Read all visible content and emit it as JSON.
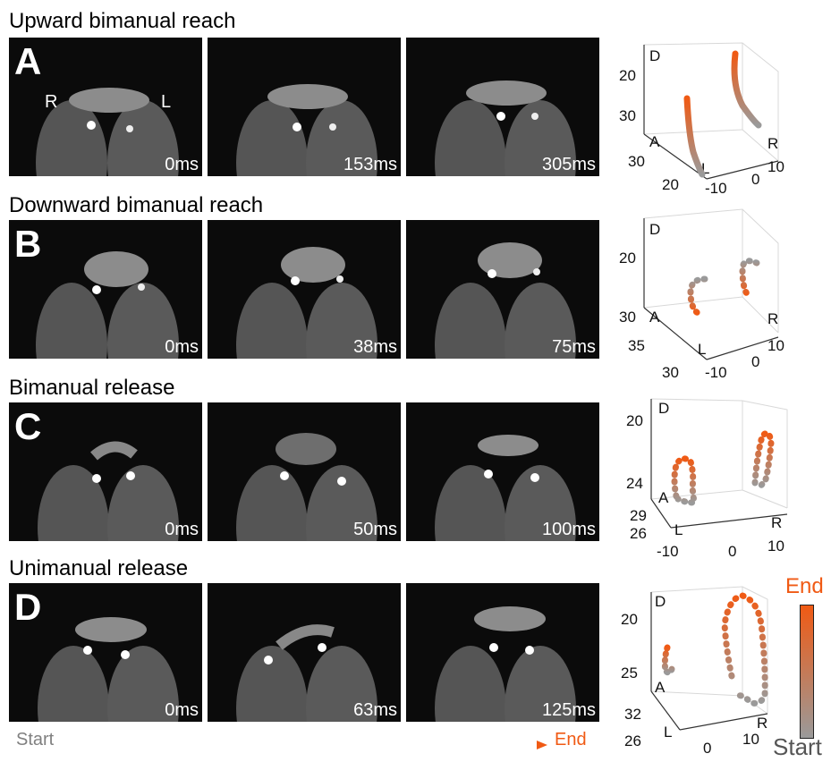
{
  "rows": [
    {
      "title": "Upward bimanual reach",
      "letter": "A",
      "times": [
        "0ms",
        "153ms",
        "305ms"
      ],
      "hands": {
        "right": "R",
        "left": "L"
      },
      "plot": {
        "d_ticks": [
          "20",
          "30"
        ],
        "a_ticks": [
          "30",
          "20"
        ],
        "x_ticks": [
          "10",
          "0",
          "-10"
        ],
        "labels": {
          "d": "D",
          "a": "A",
          "l": "L",
          "r": "R"
        }
      }
    },
    {
      "title": "Downward bimanual reach",
      "letter": "B",
      "times": [
        "0ms",
        "38ms",
        "75ms"
      ],
      "plot": {
        "d_ticks": [
          "20",
          "30"
        ],
        "a_ticks": [
          "35",
          "30"
        ],
        "x_ticks": [
          "10",
          "0",
          "-10"
        ],
        "labels": {
          "d": "D",
          "a": "A",
          "l": "L",
          "r": "R"
        }
      }
    },
    {
      "title": "Bimanual release",
      "letter": "C",
      "times": [
        "0ms",
        "50ms",
        "100ms"
      ],
      "plot": {
        "d_ticks": [
          "20",
          "24"
        ],
        "a_ticks": [
          "29",
          "26"
        ],
        "x_ticks": [
          "-10",
          "0",
          "10"
        ],
        "labels": {
          "d": "D",
          "a": "A",
          "l": "L",
          "r": "R"
        }
      }
    },
    {
      "title": "Unimanual release",
      "letter": "D",
      "times": [
        "0ms",
        "63ms",
        "125ms"
      ],
      "plot": {
        "d_ticks": [
          "20",
          "25"
        ],
        "a_ticks": [
          "32",
          "26"
        ],
        "x_ticks": [
          "0",
          "10"
        ],
        "labels": {
          "d": "D",
          "a": "A",
          "l": "L",
          "r": "R"
        }
      }
    }
  ],
  "timeline": {
    "start": "Start",
    "end": "End"
  },
  "colorbar": {
    "start": "Start",
    "end": "End",
    "start_color": "#9a9a9a",
    "end_color": "#f05a14"
  }
}
